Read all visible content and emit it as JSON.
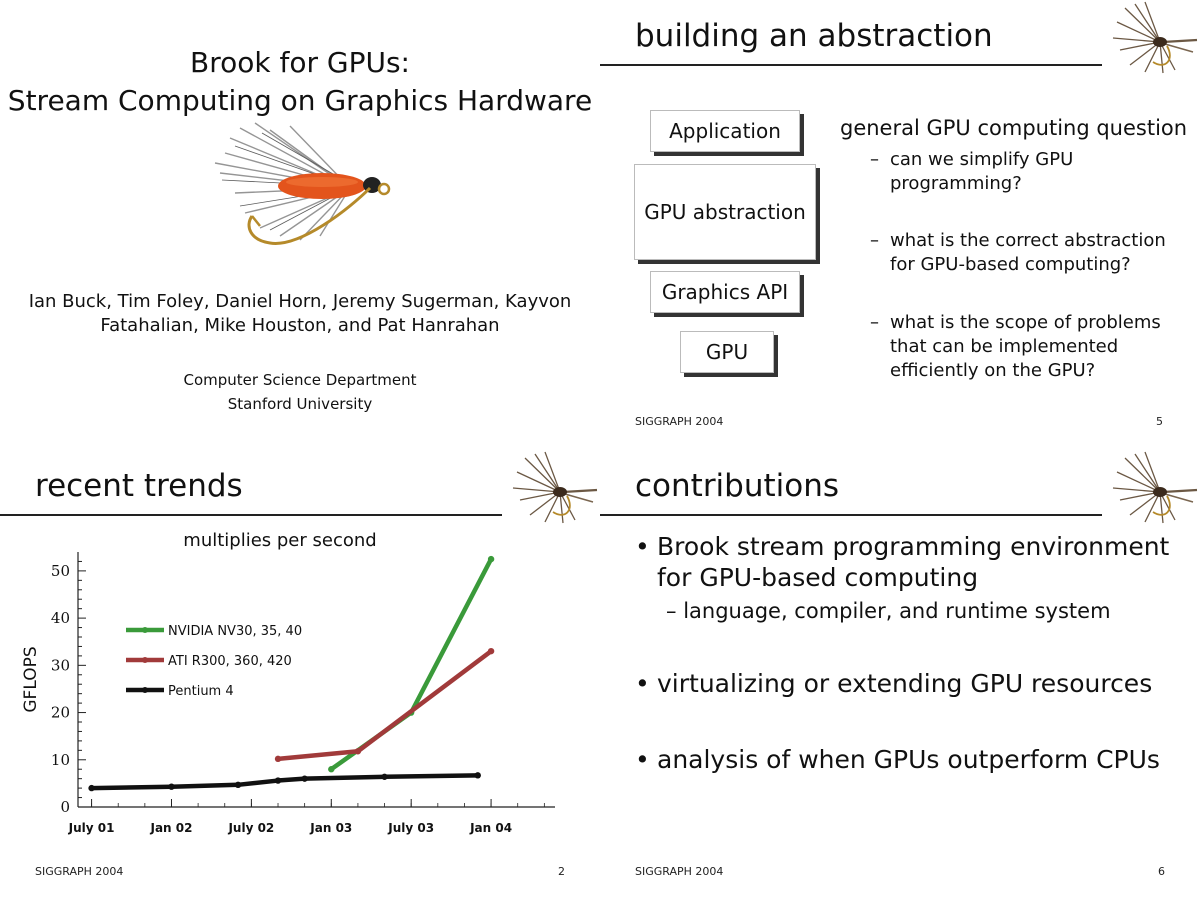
{
  "slides": {
    "title": {
      "title_line1": "Brook for GPUs:",
      "title_line2": "Stream Computing on Graphics Hardware",
      "authors_line1": "Ian Buck, Tim Foley, Daniel Horn, Jeremy Sugerman, Kayvon",
      "authors_line2": "Fatahalian, Mike Houston, and Pat Hanrahan",
      "department": "Computer Science Department",
      "university": "Stanford University"
    },
    "abstraction": {
      "heading": "building an abstraction",
      "boxes": [
        "Application",
        "GPU abstraction",
        "Graphics API",
        "GPU"
      ],
      "question_heading": "general GPU computing question",
      "questions": [
        [
          "can we simplify GPU",
          "programming?"
        ],
        [
          "what is the correct abstraction",
          "for GPU-based computing?"
        ],
        [
          "what is the scope of problems",
          "that can be implemented",
          "efficiently on the GPU?"
        ]
      ],
      "dash": "–",
      "footer_left": "SIGGRAPH 2004",
      "page_number": "5"
    },
    "trends": {
      "heading": "recent trends",
      "chart_title": "multiplies per second",
      "footer_left": "SIGGRAPH 2004",
      "page_number": "2"
    },
    "contributions": {
      "heading": "contributions",
      "bullet_symbol": "•",
      "dash": "–",
      "bullets": [
        {
          "lines": [
            "Brook stream programming environment",
            "for GPU-based computing"
          ],
          "sub": "language, compiler, and runtime system"
        },
        {
          "lines": [
            "virtualizing or extending GPU resources"
          ]
        },
        {
          "lines": [
            "analysis of when GPUs outperform CPUs"
          ]
        }
      ],
      "footer_left": "SIGGRAPH 2004",
      "page_number": "6"
    }
  },
  "chart_data": {
    "type": "line",
    "title": "multiplies per second",
    "xlabel": "",
    "ylabel": "GFLOPS",
    "x_ticks": [
      "July 01",
      "Jan 02",
      "July 02",
      "Jan 03",
      "July 03",
      "Jan 04"
    ],
    "ylim": [
      0,
      54
    ],
    "y_ticks": [
      0,
      10,
      20,
      30,
      40,
      50
    ],
    "legend_position": "upper-left",
    "series": [
      {
        "name": "NVIDIA NV30, 35, 40",
        "color": "#3a9a3a",
        "x": [
          "Jan 03",
          "July 03",
          "Jan 04"
        ],
        "y": [
          8,
          20,
          52.5
        ]
      },
      {
        "name": "ATI R300, 360, 420",
        "color": "#a13a3a",
        "x": [
          "Sep 02",
          "Mar 03",
          "Jan 04"
        ],
        "y": [
          10.2,
          11.8,
          33
        ]
      },
      {
        "name": "Pentium 4",
        "color": "#111111",
        "x": [
          "July 01",
          "Jan 02",
          "June 02",
          "Sep 02",
          "Nov 02",
          "May 03",
          "Dec 03"
        ],
        "y": [
          4,
          4.3,
          4.7,
          5.6,
          6,
          6.4,
          6.7
        ]
      }
    ]
  },
  "colors": {
    "nvidia_green": "#3a9a3a",
    "ati_red": "#a13a3a",
    "pentium_black": "#111111",
    "fly_body": "#e3541c"
  },
  "icons": {
    "fly_large": "fishing-fly-image",
    "fly_small": "fishing-fly-icon"
  }
}
